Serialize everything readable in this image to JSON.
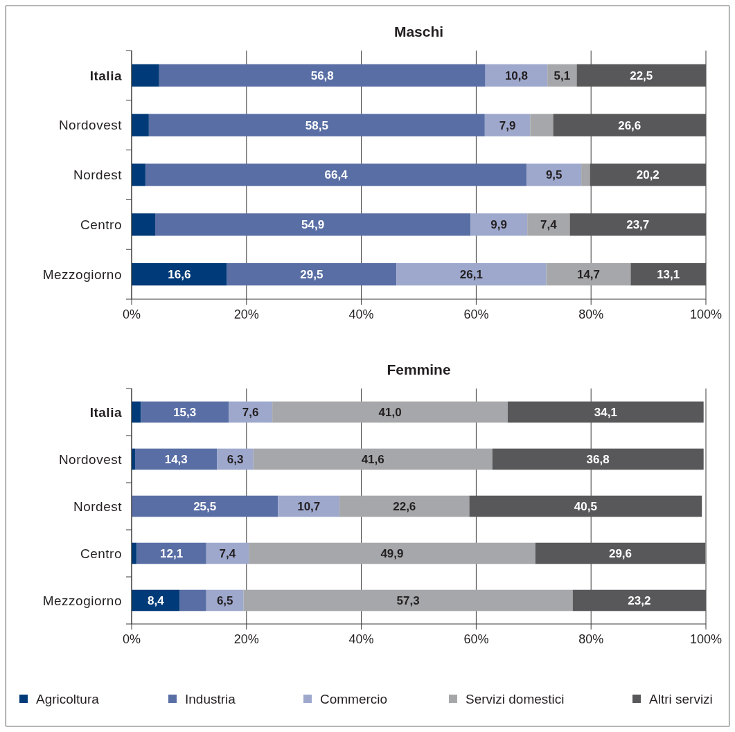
{
  "chart_data": [
    {
      "type": "bar",
      "title": "Maschi",
      "orientation": "horizontal",
      "stacked": true,
      "categories": [
        "Italia",
        "Nordovest",
        "Nordest",
        "Centro",
        "Mezzogiorno"
      ],
      "series": [
        {
          "color": "#003a78",
          "values": [
            4.8,
            3.0,
            2.4,
            4.1,
            16.6
          ],
          "value_labels": [
            null,
            null,
            null,
            null,
            "16,6"
          ]
        },
        {
          "color": "#596ea4",
          "values": [
            56.8,
            58.5,
            66.4,
            54.9,
            29.5
          ],
          "value_labels": [
            "56,8",
            "58,5",
            "66,4",
            "54,9",
            "29,5"
          ]
        },
        {
          "color": "#9ea8cc",
          "values": [
            10.8,
            7.9,
            9.5,
            9.9,
            26.1
          ],
          "value_labels": [
            "10,8",
            "7,9",
            "9,5",
            "9,9",
            "26,1"
          ]
        },
        {
          "color": "#a6a7aa",
          "values": [
            5.1,
            4.0,
            1.5,
            7.4,
            14.7
          ],
          "value_labels": [
            "5,1",
            null,
            null,
            "7,4",
            "14,7"
          ]
        },
        {
          "color": "#58585a",
          "values": [
            22.5,
            26.6,
            20.2,
            23.7,
            13.1
          ],
          "value_labels": [
            "22,5",
            "26,6",
            "20,2",
            "23,7",
            "13,1"
          ]
        }
      ],
      "xlim": [
        0,
        100
      ],
      "xticks": [
        {
          "value": 0,
          "label": "0%"
        },
        {
          "value": 20,
          "label": "20%"
        },
        {
          "value": 40,
          "label": "40%"
        },
        {
          "value": 60,
          "label": "60%"
        },
        {
          "value": 80,
          "label": "80%"
        },
        {
          "value": 100,
          "label": "100%"
        }
      ],
      "grid": "x",
      "legend": false
    },
    {
      "type": "bar",
      "title": "Femmine",
      "orientation": "horizontal",
      "stacked": true,
      "categories": [
        "Italia",
        "Nordovest",
        "Nordest",
        "Centro",
        "Mezzogiorno"
      ],
      "series": [
        {
          "name": "Agricoltura",
          "color": "#003a78",
          "values": [
            1.6,
            0.6,
            0,
            0.9,
            8.4
          ],
          "value_labels": [
            null,
            null,
            null,
            null,
            "8,4"
          ]
        },
        {
          "name": "Industria",
          "color": "#596ea4",
          "values": [
            15.3,
            14.3,
            25.5,
            12.1,
            4.6
          ],
          "value_labels": [
            "15,3",
            "14,3",
            "25,5",
            "12,1",
            null
          ]
        },
        {
          "name": "Commercio",
          "color": "#9ea8cc",
          "values": [
            7.6,
            6.3,
            10.7,
            7.4,
            6.5
          ],
          "value_labels": [
            "7,6",
            "6,3",
            "10,7",
            "7,4",
            "6,5"
          ]
        },
        {
          "name": "Servizi domestici",
          "color": "#a6a7aa",
          "values": [
            41.0,
            41.6,
            22.6,
            49.9,
            57.3
          ],
          "value_labels": [
            "41,0",
            "41,6",
            "22,6",
            "49,9",
            "57,3"
          ]
        },
        {
          "name": "Altri servizi",
          "color": "#58585a",
          "values": [
            34.1,
            36.8,
            40.5,
            29.6,
            23.2
          ],
          "value_labels": [
            "34,1",
            "36,8",
            "40,5",
            "29,6",
            "23,2"
          ]
        }
      ],
      "xlim": [
        0,
        100
      ],
      "xticks": [
        {
          "value": 0,
          "label": "0%"
        },
        {
          "value": 20,
          "label": "20%"
        },
        {
          "value": 40,
          "label": "40%"
        },
        {
          "value": 60,
          "label": "60%"
        },
        {
          "value": 80,
          "label": "80%"
        },
        {
          "value": 100,
          "label": "100%"
        }
      ],
      "grid": "x",
      "legend": "bottom"
    }
  ]
}
